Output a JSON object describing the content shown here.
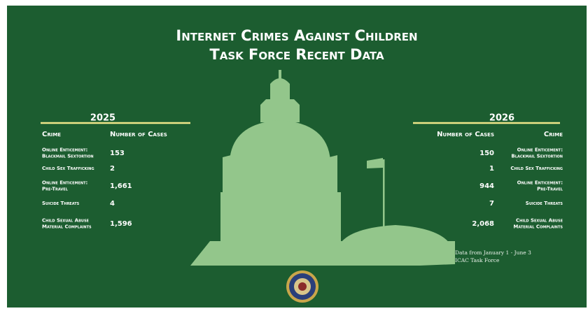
{
  "title": [
    "Internet Crimes Against Children",
    "Task Force Recent Data"
  ],
  "tables": [
    {
      "year": "2025",
      "headers": [
        "Crime",
        "Number of Cases"
      ],
      "rows": [
        {
          "crime": [
            "Online Enticement:",
            "Blackmail Sextortion"
          ],
          "cases": "153"
        },
        {
          "crime": [
            "Child Sex Trafficking"
          ],
          "cases": "2"
        },
        {
          "crime": [
            "Online Enticement:",
            "Pre-Travel"
          ],
          "cases": "1,661"
        },
        {
          "crime": [
            "Suicide Threats"
          ],
          "cases": "4"
        },
        {
          "crime": [
            "Child Sexual Abuse",
            "Material Complaints"
          ],
          "cases": "1,596"
        }
      ]
    },
    {
      "year": "2026",
      "headers": [
        "Number of Cases",
        "Crime"
      ],
      "rows": [
        {
          "cases": "150",
          "crime": [
            "Online Enticement:",
            "Blackmail Sextortion"
          ]
        },
        {
          "cases": "1",
          "crime": [
            "Child Sex Trafficking"
          ]
        },
        {
          "cases": "944",
          "crime": [
            "Online Enticement:",
            "Pre-Travel"
          ]
        },
        {
          "cases": "7",
          "crime": [
            "Suicide Threats"
          ]
        },
        {
          "cases": "2,068",
          "crime": [
            "Child Sexual Abuse",
            "Material Complaints"
          ]
        }
      ]
    }
  ],
  "note": [
    "Data from January 1 - June 3",
    "ICAC Task Force"
  ]
}
